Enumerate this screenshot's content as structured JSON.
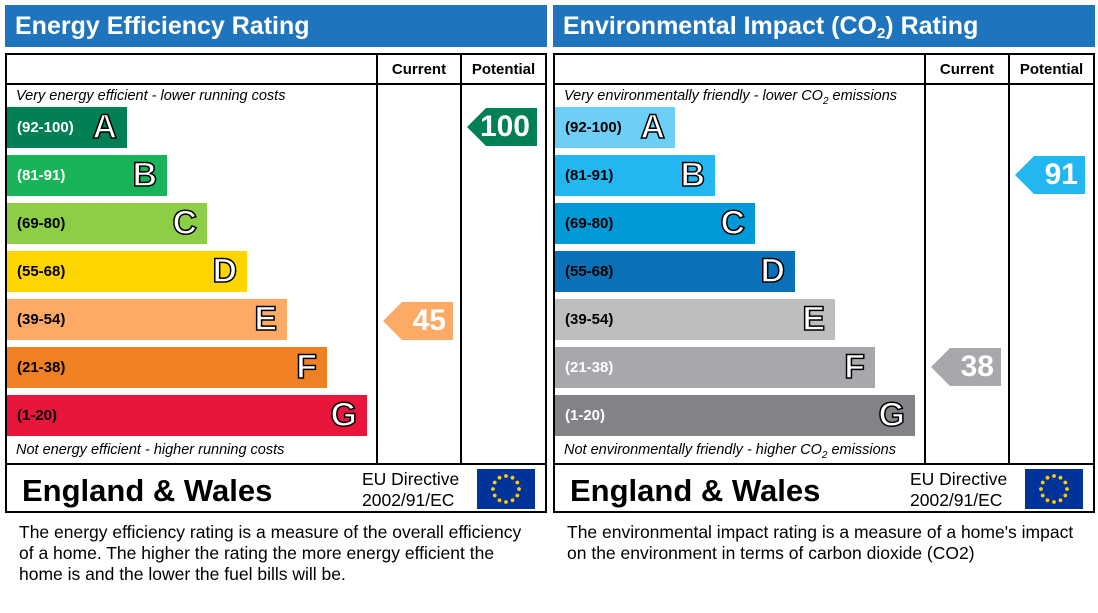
{
  "panels": [
    {
      "title": "Energy Efficiency Rating",
      "col_current": "Current",
      "col_potential": "Potential",
      "top_caption": "Very energy efficient - lower running costs",
      "bottom_caption": "Not energy efficient - higher running costs",
      "country": "England & Wales",
      "directive_line1": "EU Directive",
      "directive_line2": "2002/91/EC",
      "description": "The energy efficiency rating is a measure of the overall efficiency of a home.  The higher the rating the more energy efficient the home is and the lower the fuel bills will be.",
      "bands": [
        {
          "range": "(92-100)",
          "letter": "A",
          "color": "#008054",
          "text_color": "#ffffff"
        },
        {
          "range": "(81-91)",
          "letter": "B",
          "color": "#19b459",
          "text_color": "#ffffff"
        },
        {
          "range": "(69-80)",
          "letter": "C",
          "color": "#8dce46",
          "text_color": "#000000"
        },
        {
          "range": "(55-68)",
          "letter": "D",
          "color": "#ffd500",
          "text_color": "#000000"
        },
        {
          "range": "(39-54)",
          "letter": "E",
          "color": "#fcaa65",
          "text_color": "#000000"
        },
        {
          "range": "(21-38)",
          "letter": "F",
          "color": "#ef8023",
          "text_color": "#000000"
        },
        {
          "range": "(1-20)",
          "letter": "G",
          "color": "#e9153b",
          "text_color": "#000000"
        }
      ],
      "current": {
        "value": "45",
        "band": "E",
        "color": "#fcaa65"
      },
      "potential": {
        "value": "100",
        "band": "A",
        "color": "#008054"
      }
    },
    {
      "title": "Environmental Impact (CO",
      "title_sub": "2",
      "title_end": ") Rating",
      "col_current": "Current",
      "col_potential": "Potential",
      "top_caption": "Very environmentally friendly - lower CO",
      "top_caption_sub": "2",
      "top_caption_end": " emissions",
      "bottom_caption": "Not environmentally friendly - higher CO",
      "bottom_caption_sub": "2",
      "bottom_caption_end": " emissions",
      "country": "England & Wales",
      "directive_line1": "EU Directive",
      "directive_line2": "2002/91/EC",
      "description": "The environmental impact rating is a measure of a home's impact on the environment in terms of carbon dioxide (CO2)",
      "bands": [
        {
          "range": "(92-100)",
          "letter": "A",
          "color": "#6ecff6",
          "text_color": "#000000"
        },
        {
          "range": "(81-91)",
          "letter": "B",
          "color": "#23b7f2",
          "text_color": "#000000"
        },
        {
          "range": "(69-80)",
          "letter": "C",
          "color": "#0099d8",
          "text_color": "#000000"
        },
        {
          "range": "(55-68)",
          "letter": "D",
          "color": "#0b71b8",
          "text_color": "#000000"
        },
        {
          "range": "(39-54)",
          "letter": "E",
          "color": "#bcbec0",
          "text_color": "#000000"
        },
        {
          "range": "(21-38)",
          "letter": "F",
          "color": "#a6a8ab",
          "text_color": "#ffffff"
        },
        {
          "range": "(1-20)",
          "letter": "G",
          "color": "#828386",
          "text_color": "#ffffff"
        }
      ],
      "current": {
        "value": "38",
        "band": "F",
        "color": "#a6a8ab"
      },
      "potential": {
        "value": "91",
        "band": "B",
        "color": "#23b7f2"
      }
    }
  ],
  "chart_data": [
    {
      "type": "bar",
      "title": "Energy Efficiency Rating",
      "categories": [
        "A",
        "B",
        "C",
        "D",
        "E",
        "F",
        "G"
      ],
      "ranges": [
        "92-100",
        "81-91",
        "69-80",
        "55-68",
        "39-54",
        "21-38",
        "1-20"
      ],
      "current": 45,
      "potential": 100
    },
    {
      "type": "bar",
      "title": "Environmental Impact (CO2) Rating",
      "categories": [
        "A",
        "B",
        "C",
        "D",
        "E",
        "F",
        "G"
      ],
      "ranges": [
        "92-100",
        "81-91",
        "69-80",
        "55-68",
        "39-54",
        "21-38",
        "1-20"
      ],
      "current": 38,
      "potential": 91
    }
  ]
}
